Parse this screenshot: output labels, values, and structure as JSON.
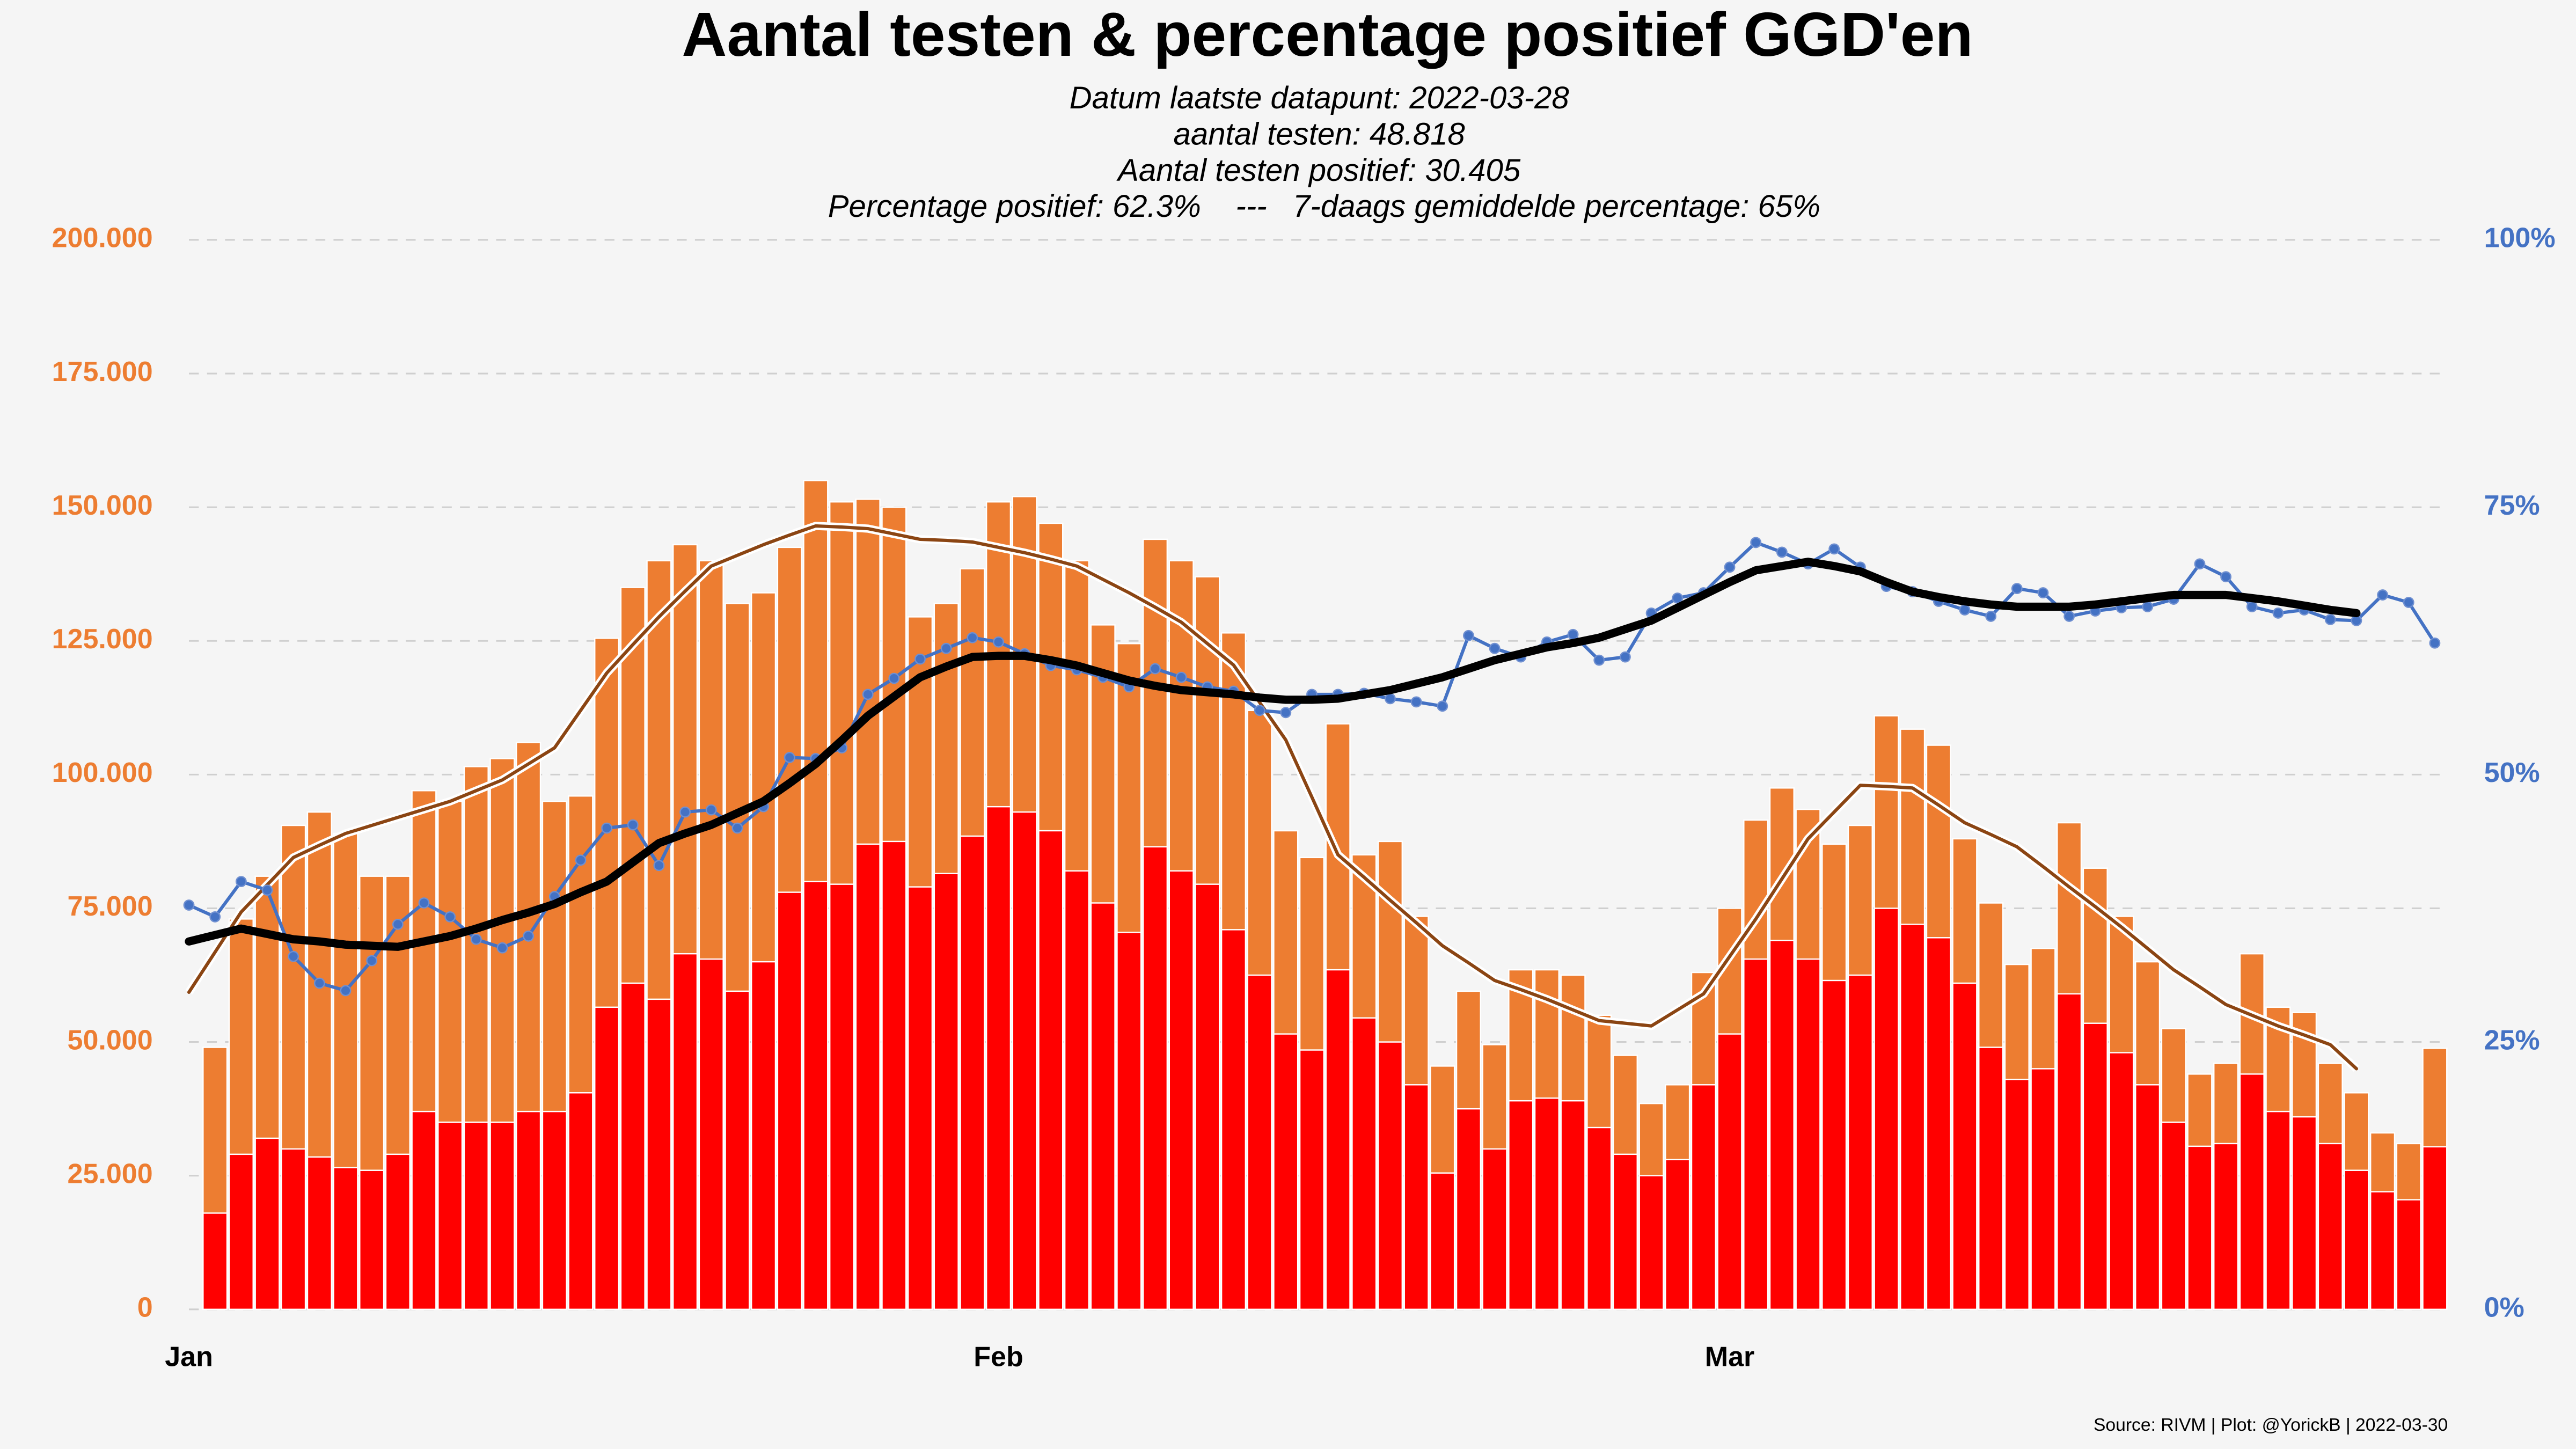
{
  "chart_data": {
    "type": "bar",
    "title": "Aantal testen & percentage positief GGD'en",
    "subtitle": [
      "Datum laatste datapunt: 2022-03-28",
      "aantal testen: 48.818",
      "Aantal testen positief: 30.405",
      "Percentage positief: 62.3%    ---   7-daags gemiddelde percentage: 65%"
    ],
    "source": "Source: RIVM | Plot: @YorickB |  2022-03-30",
    "x": [
      0,
      1,
      2,
      3,
      4,
      5,
      6,
      7,
      8,
      9,
      10,
      11,
      12,
      13,
      14,
      15,
      16,
      17,
      18,
      19,
      20,
      21,
      22,
      23,
      24,
      25,
      26,
      27,
      28,
      29,
      30,
      31,
      32,
      33,
      34,
      35,
      36,
      37,
      38,
      39,
      40,
      41,
      42,
      43,
      44,
      45,
      46,
      47,
      48,
      49,
      50,
      51,
      52,
      53,
      54,
      55,
      56,
      57,
      58,
      59,
      60,
      61,
      62,
      63,
      64,
      65,
      66,
      67,
      68,
      69,
      70,
      71,
      72,
      73,
      74,
      75,
      76,
      77,
      78,
      79,
      80,
      81,
      82,
      83,
      84,
      85,
      86
    ],
    "xlim": [
      0,
      86.5
    ],
    "xticks": [
      {
        "value": 0,
        "label": "Jan"
      },
      {
        "value": 31,
        "label": "Feb"
      },
      {
        "value": 59,
        "label": "Mar"
      }
    ],
    "ylim": [
      0,
      200000
    ],
    "yticks": [
      0,
      {
        "value": 25000,
        "label": "25.000"
      },
      {
        "value": 50000,
        "label": "50.000"
      },
      {
        "value": 75000,
        "label": "75.000"
      },
      {
        "value": 100000,
        "label": "100.000"
      },
      {
        "value": 125000,
        "label": "125.000"
      },
      {
        "value": 150000,
        "label": "150.000"
      },
      {
        "value": 175000,
        "label": "175.000"
      },
      {
        "value": 200000,
        "label": "200.000"
      }
    ],
    "y2lim": [
      0,
      100
    ],
    "y2ticks": [
      {
        "value": 0,
        "label": "0%"
      },
      {
        "value": 25,
        "label": "25%"
      },
      {
        "value": 50,
        "label": "50%"
      },
      {
        "value": 75,
        "label": "75%"
      },
      {
        "value": 100,
        "label": "100%"
      }
    ],
    "grid": true,
    "series": [
      {
        "kind": "bar",
        "color": "#ED7D31",
        "values": [
          null,
          49000,
          73000,
          81000,
          90500,
          93000,
          89000,
          81000,
          81000,
          97000,
          95000,
          101500,
          103000,
          106000,
          95000,
          96000,
          125500,
          135000,
          140000,
          143000,
          140000,
          132000,
          134000,
          142500,
          155000,
          151000,
          151500,
          150000,
          129500,
          132000,
          138500,
          151000,
          152000,
          147000,
          140000,
          128000,
          124500,
          144000,
          140000,
          137000,
          126500,
          112000,
          89500,
          84500,
          109500,
          85000,
          87500,
          73500,
          45500,
          59500,
          49500,
          63500,
          63500,
          62500,
          55000,
          47500,
          38500,
          42000,
          63000,
          75000,
          91500,
          97500,
          93500,
          87000,
          90500,
          111000,
          108500,
          105500,
          88000,
          76000,
          64500,
          67500,
          91000,
          82500,
          73500,
          65000,
          52500,
          44000,
          46000,
          66500,
          56500,
          55500,
          46000,
          40500,
          33000,
          31000,
          48818
        ]
      },
      {
        "kind": "bar",
        "color": "#FF0000",
        "values": [
          null,
          18000,
          29000,
          32000,
          30000,
          28500,
          26500,
          26000,
          29000,
          37000,
          35000,
          35000,
          35000,
          37000,
          37000,
          40500,
          56500,
          61000,
          58000,
          66500,
          65500,
          59500,
          65000,
          78000,
          80000,
          79500,
          87000,
          87500,
          79000,
          81500,
          88500,
          94000,
          93000,
          89500,
          82000,
          76000,
          70500,
          86500,
          82000,
          79500,
          71000,
          62500,
          51500,
          48500,
          63500,
          54500,
          50000,
          42000,
          25500,
          37500,
          30000,
          39000,
          39500,
          39000,
          34000,
          29000,
          25000,
          28000,
          42000,
          51500,
          65500,
          69000,
          65500,
          61500,
          62500,
          75000,
          72000,
          69500,
          61000,
          49000,
          43000,
          45000,
          59000,
          53500,
          48000,
          42000,
          35000,
          30500,
          31000,
          44000,
          37000,
          36000,
          31000,
          26000,
          22000,
          20500,
          30405
        ]
      },
      {
        "kind": "line",
        "color": "#8B4513",
        "outline": "#ffffff",
        "width": 2,
        "values": [
          59300,
          66800,
          74300,
          79400,
          84500,
          86800,
          89000,
          90500,
          92000,
          93500,
          95000,
          97000,
          99000,
          102000,
          105000,
          112000,
          119000,
          124300,
          129500,
          134300,
          139000,
          141000,
          143000,
          144800,
          146500,
          146300,
          146000,
          145000,
          144000,
          143800,
          143500,
          142500,
          141500,
          140300,
          139000,
          136500,
          134000,
          131300,
          128500,
          124500,
          120500,
          113500,
          106500,
          95800,
          85000,
          80800,
          76500,
          72300,
          68000,
          64800,
          61500,
          59800,
          58000,
          56000,
          54000,
          53500,
          53000,
          56000,
          59000,
          66000,
          73000,
          80500,
          88000,
          93000,
          98000,
          97800,
          97500,
          94300,
          91000,
          88800,
          86500,
          82800,
          79000,
          75300,
          71500,
          67500,
          63500,
          60300,
          57000,
          55000,
          53000,
          51300,
          49500,
          45000,
          null,
          null,
          null
        ]
      },
      {
        "kind": "line",
        "axis": "y2",
        "color": "#4472C4",
        "width": 2,
        "markers": true,
        "values": [
          37.8,
          36.7,
          40,
          39.2,
          33,
          30.5,
          29.8,
          32.6,
          36,
          38,
          36.7,
          34.6,
          33.8,
          34.9,
          38.6,
          42,
          45,
          45.3,
          41.5,
          46.5,
          46.7,
          45,
          47,
          51.6,
          51.5,
          52.5,
          57.5,
          59,
          60.8,
          61.8,
          62.8,
          62.4,
          61.3,
          60.2,
          59.8,
          59.1,
          58.2,
          59.9,
          59.1,
          58.2,
          57.8,
          56,
          55.8,
          57.5,
          57.5,
          57.6,
          57.1,
          56.8,
          56.4,
          63,
          61.8,
          61,
          62.4,
          63.1,
          60.7,
          61,
          65.1,
          66.5,
          67,
          69.4,
          71.7,
          70.8,
          69.7,
          71.1,
          69.4,
          67.6,
          67.1,
          66.2,
          65.4,
          64.8,
          67.4,
          67,
          64.8,
          65.3,
          65.6,
          65.7,
          66.4,
          69.7,
          68.5,
          65.7,
          65.1,
          65.4,
          64.5,
          64.4,
          66.8,
          66.1,
          62.3
        ]
      },
      {
        "kind": "line",
        "axis": "y2",
        "color": "#000000",
        "width": 5,
        "values": [
          34.4,
          35,
          35.6,
          35.1,
          34.6,
          34.4,
          34.1,
          34,
          33.9,
          34.4,
          34.9,
          35.6,
          36.4,
          37.1,
          37.9,
          39,
          40,
          41.8,
          43.6,
          44.5,
          45.3,
          46.4,
          47.5,
          49.2,
          51,
          53.2,
          55.5,
          57.3,
          59.1,
          60.1,
          61,
          61.1,
          61.1,
          60.7,
          60.2,
          59.5,
          58.8,
          58.3,
          57.9,
          57.7,
          57.5,
          57.2,
          57,
          57,
          57.1,
          57.5,
          57.9,
          58.5,
          59.1,
          59.9,
          60.7,
          61.3,
          61.9,
          62.3,
          62.8,
          63.6,
          64.4,
          65.6,
          66.8,
          68,
          69.1,
          69.5,
          69.9,
          69.5,
          69,
          68,
          67.1,
          66.6,
          66.2,
          65.9,
          65.7,
          65.7,
          65.7,
          65.9,
          66.2,
          66.5,
          66.8,
          66.8,
          66.8,
          66.5,
          66.2,
          65.8,
          65.4,
          65.1,
          null,
          null,
          null
        ]
      }
    ]
  }
}
